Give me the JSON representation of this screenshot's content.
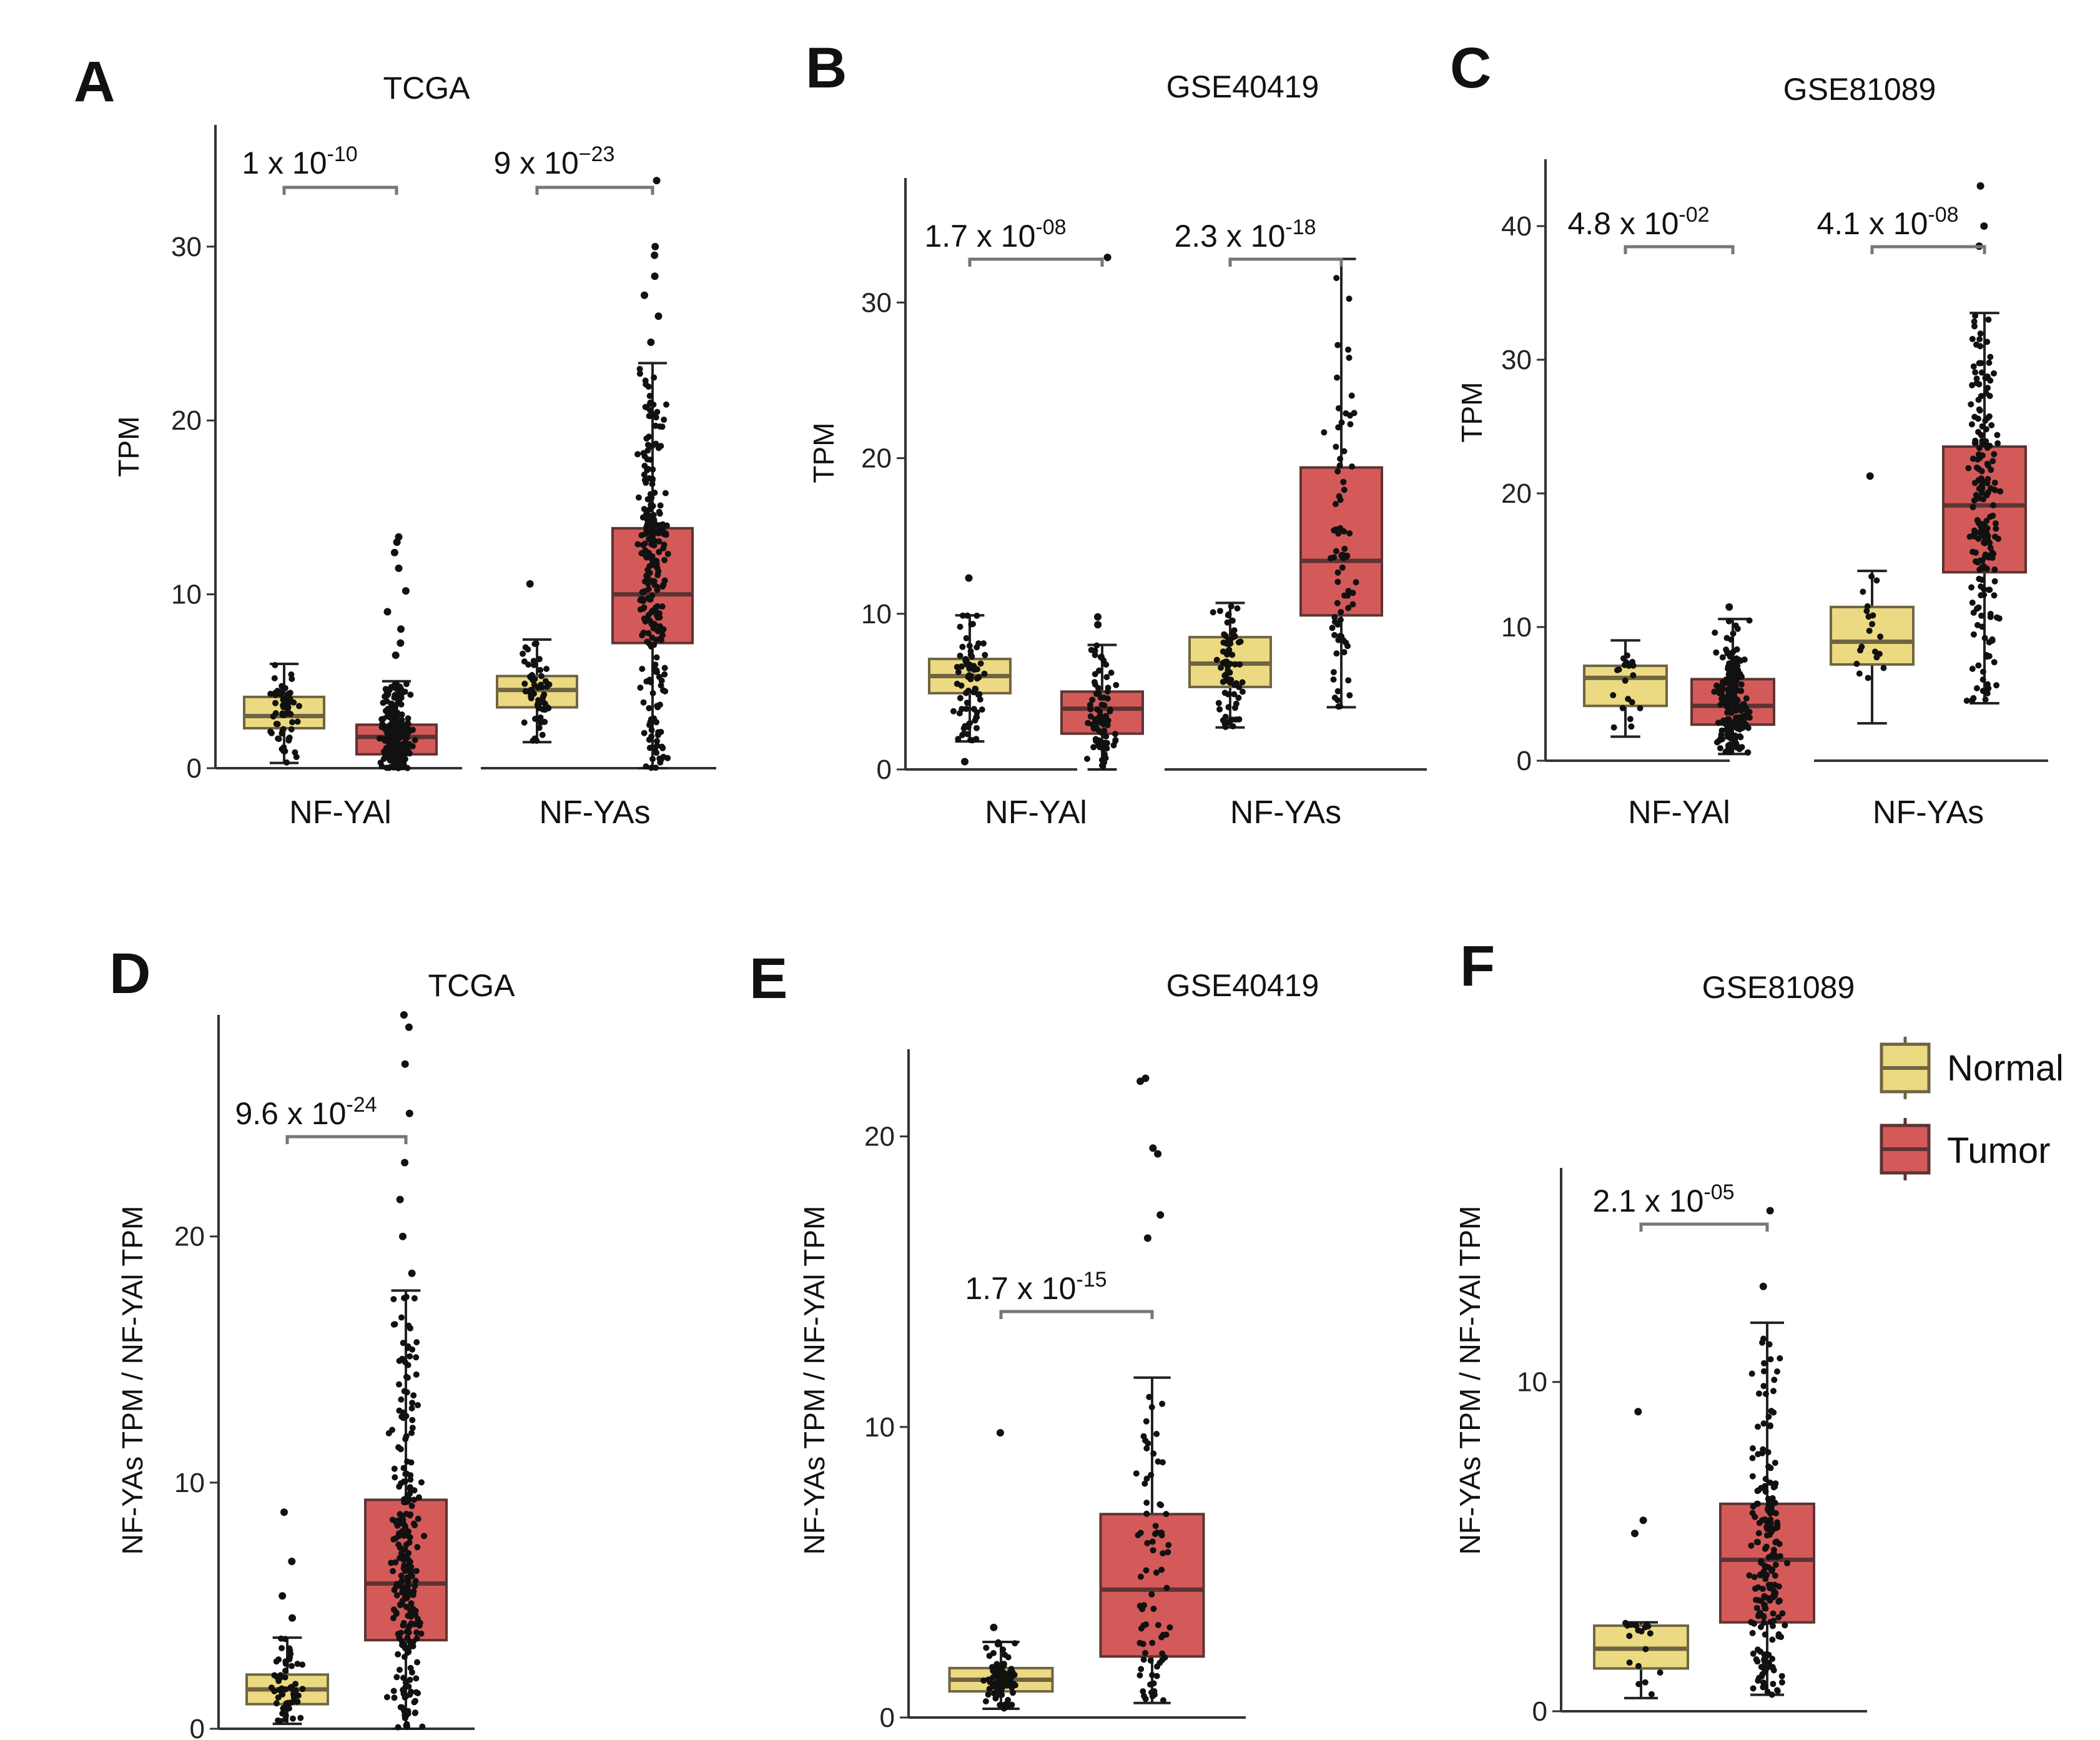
{
  "colors": {
    "normal": "#ECDA82",
    "normal_stroke": "#6F6442",
    "tumor": "#D45A5A",
    "tumor_stroke": "#5C3333",
    "axis": "#333333",
    "points": "#111111"
  },
  "legend": {
    "items": [
      {
        "label": "Normal",
        "color": "#ECDA82"
      },
      {
        "label": "Tumor",
        "color": "#D45A5A"
      }
    ]
  },
  "chart_data": [
    {
      "panel": "A",
      "type": "box",
      "title": "TCGA",
      "ylabel": "TPM",
      "ylim": [
        0,
        37
      ],
      "yticks": [
        0,
        10,
        20,
        30
      ],
      "groups": [
        {
          "label": "NF-YAl",
          "pvalue": {
            "mant": "1 x 10",
            "exp": "-10"
          },
          "boxes": [
            {
              "class": "Normal",
              "whislo": 0.3,
              "q1": 2.3,
              "median": 3.0,
              "q3": 4.1,
              "whishi": 6.0,
              "n": 60
            },
            {
              "class": "Tumor",
              "whislo": 0.0,
              "q1": 0.8,
              "median": 1.8,
              "q3": 2.5,
              "whishi": 5.0,
              "n": 500,
              "outliers": [
                6.5,
                7.2,
                8.0,
                9.0,
                10.2,
                11.5,
                12.4,
                13.0,
                13.3
              ]
            }
          ]
        },
        {
          "label": "NF-YAs",
          "pvalue": {
            "mant": "9 x 10",
            "exp": "−23"
          },
          "boxes": [
            {
              "class": "Normal",
              "whislo": 1.5,
              "q1": 3.5,
              "median": 4.5,
              "q3": 5.3,
              "whishi": 7.4,
              "n": 60,
              "outliers": [
                10.6
              ]
            },
            {
              "class": "Tumor",
              "whislo": 0.0,
              "q1": 7.2,
              "median": 10.0,
              "q3": 13.8,
              "whishi": 23.3,
              "n": 500,
              "outliers": [
                24.5,
                26.0,
                27.2,
                28.3,
                29.5,
                30.0,
                33.8
              ]
            }
          ]
        }
      ]
    },
    {
      "panel": "B",
      "type": "box",
      "title": "GSE40419",
      "ylabel": "TPM",
      "ylim": [
        0,
        38
      ],
      "yticks": [
        0,
        10,
        20,
        30
      ],
      "groups": [
        {
          "label": "NF-YAl",
          "pvalue": {
            "mant": "1.7 x 10",
            "exp": "-08"
          },
          "boxes": [
            {
              "class": "Normal",
              "whislo": 1.8,
              "q1": 4.9,
              "median": 6.0,
              "q3": 7.1,
              "whishi": 9.9,
              "n": 77,
              "outliers": [
                0.5,
                12.3
              ]
            },
            {
              "class": "Tumor",
              "whislo": 0.0,
              "q1": 2.3,
              "median": 3.9,
              "q3": 5.0,
              "whishi": 8.0,
              "n": 77,
              "outliers": [
                9.3,
                9.8,
                32.9
              ]
            }
          ]
        },
        {
          "label": "NF-YAs",
          "pvalue": {
            "mant": "2.3 x 10",
            "exp": "-18"
          },
          "boxes": [
            {
              "class": "Normal",
              "whislo": 2.7,
              "q1": 5.3,
              "median": 6.8,
              "q3": 8.5,
              "whishi": 10.7,
              "n": 77
            },
            {
              "class": "Tumor",
              "whislo": 4.0,
              "q1": 9.9,
              "median": 13.4,
              "q3": 19.4,
              "whishi": 32.8,
              "n": 77
            }
          ]
        }
      ]
    },
    {
      "panel": "C",
      "type": "box",
      "title": "GSE81089",
      "ylabel": "TPM",
      "ylim": [
        0,
        45
      ],
      "yticks": [
        0,
        10,
        20,
        30,
        40
      ],
      "groups": [
        {
          "label": "NF-YAl",
          "pvalue": {
            "mant": "4.8 x 10",
            "exp": "-02"
          },
          "boxes": [
            {
              "class": "Normal",
              "whislo": 1.8,
              "q1": 4.1,
              "median": 6.2,
              "q3": 7.1,
              "whishi": 9.0,
              "n": 19
            },
            {
              "class": "Tumor",
              "whislo": 0.5,
              "q1": 2.7,
              "median": 4.1,
              "q3": 6.1,
              "whishi": 10.6,
              "n": 199,
              "outliers": [
                11.5
              ]
            }
          ]
        },
        {
          "label": "NF-YAs",
          "pvalue": {
            "mant": "4.1 x 10",
            "exp": "-08"
          },
          "boxes": [
            {
              "class": "Normal",
              "whislo": 2.8,
              "q1": 7.2,
              "median": 8.9,
              "q3": 11.5,
              "whishi": 14.2,
              "n": 19,
              "outliers": [
                21.3
              ]
            },
            {
              "class": "Tumor",
              "whislo": 4.3,
              "q1": 14.1,
              "median": 19.1,
              "q3": 23.5,
              "whishi": 33.5,
              "n": 199,
              "outliers": [
                38.5,
                40.0,
                43.0
              ]
            }
          ]
        }
      ]
    },
    {
      "panel": "D",
      "type": "box",
      "title": "TCGA",
      "ylabel": "NF-YAs TPM / NF-YAl TPM",
      "ylim": [
        0,
        29
      ],
      "yticks": [
        0,
        10,
        20
      ],
      "groups": [
        {
          "label": "",
          "pvalue": {
            "mant": "9.6 x 10",
            "exp": "-24"
          },
          "boxes": [
            {
              "class": "Normal",
              "whislo": 0.2,
              "q1": 1.0,
              "median": 1.6,
              "q3": 2.2,
              "whishi": 3.7,
              "n": 59,
              "outliers": [
                4.5,
                5.4,
                6.8,
                8.8
              ]
            },
            {
              "class": "Tumor",
              "whislo": 0.0,
              "q1": 3.6,
              "median": 5.9,
              "q3": 9.3,
              "whishi": 17.8,
              "n": 517,
              "outliers": [
                18.5,
                20.0,
                21.5,
                23.0,
                25.0,
                27.0,
                28.5,
                29.0
              ]
            }
          ]
        }
      ]
    },
    {
      "panel": "E",
      "type": "box",
      "title": "GSE40419",
      "ylabel": "NF-YAs TPM / NF-YAl TPM",
      "ylim": [
        0,
        23
      ],
      "yticks": [
        0,
        10,
        20
      ],
      "groups": [
        {
          "label": "",
          "pvalue": {
            "mant": "1.7 x 10",
            "exp": "-15"
          },
          "boxes": [
            {
              "class": "Normal",
              "whislo": 0.3,
              "q1": 0.9,
              "median": 1.3,
              "q3": 1.7,
              "whishi": 2.6,
              "n": 77,
              "outliers": [
                3.1,
                9.8
              ]
            },
            {
              "class": "Tumor",
              "whislo": 0.5,
              "q1": 2.1,
              "median": 4.4,
              "q3": 7.0,
              "whishi": 11.7,
              "n": 77,
              "outliers": [
                16.5,
                17.3,
                19.4,
                19.6,
                21.9,
                22.0
              ]
            }
          ]
        }
      ]
    },
    {
      "panel": "F",
      "type": "box",
      "title": "GSE81089",
      "ylabel": "NF-YAs TPM / NF-YAl TPM",
      "ylim": [
        0,
        16.5
      ],
      "yticks": [
        0,
        10
      ],
      "groups": [
        {
          "label": "",
          "pvalue": {
            "mant": "2.1 x 10",
            "exp": "-05"
          },
          "boxes": [
            {
              "class": "Normal",
              "whislo": 0.4,
              "q1": 1.3,
              "median": 1.9,
              "q3": 2.6,
              "whishi": 2.7,
              "n": 19,
              "outliers": [
                5.4,
                5.8,
                9.1
              ]
            },
            {
              "class": "Tumor",
              "whislo": 0.5,
              "q1": 2.7,
              "median": 4.6,
              "q3": 6.3,
              "whishi": 11.8,
              "n": 199,
              "outliers": [
                12.9,
                15.2
              ]
            }
          ]
        }
      ]
    }
  ]
}
